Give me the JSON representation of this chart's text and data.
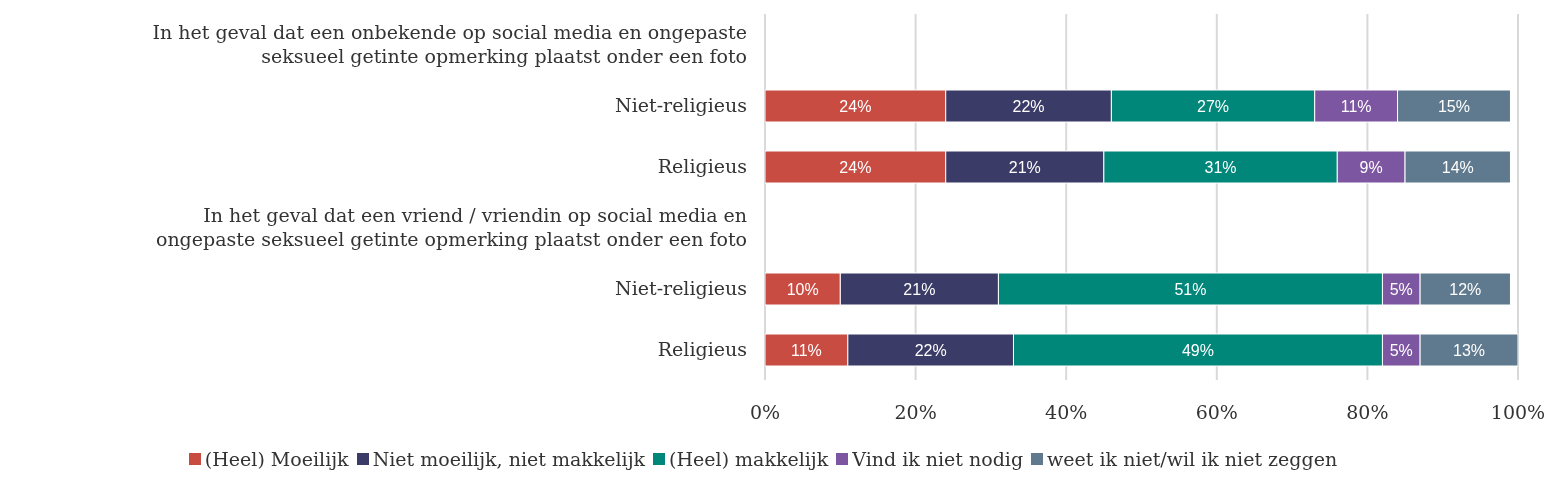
{
  "chart_data": {
    "type": "bar",
    "orientation": "horizontal",
    "stacked": true,
    "categories": [
      "In het geval dat een onbekende op social media en ongepaste seksueel getinte opmerking plaatst onder een foto",
      "Niet-religieus",
      "Religieus",
      "In het geval dat een vriend / vriendin op social media en ongepaste seksueel getinte opmerking plaatst onder een foto",
      "Niet-religieus",
      "Religieus"
    ],
    "series": [
      {
        "name": "(Heel) Moeilijk",
        "color": "#c94c43",
        "values": [
          null,
          24,
          24,
          null,
          10,
          11
        ],
        "value_labels": [
          null,
          "24%",
          "24%",
          null,
          "10%",
          "11%"
        ]
      },
      {
        "name": "Niet moeilijk, niet makkelijk",
        "color": "#3b3b67",
        "values": [
          null,
          22,
          21,
          null,
          21,
          22
        ],
        "value_labels": [
          null,
          "22%",
          "21%",
          null,
          "21%",
          "22%"
        ]
      },
      {
        "name": "(Heel) makkelijk",
        "color": "#00877a",
        "values": [
          null,
          27,
          31,
          null,
          51,
          49
        ],
        "value_labels": [
          null,
          "27%",
          "31%",
          null,
          "51%",
          "49%"
        ]
      },
      {
        "name": "Vind ik niet nodig",
        "color": "#7d56a1",
        "values": [
          null,
          11,
          9,
          null,
          5,
          5
        ],
        "value_labels": [
          null,
          "11%",
          "9%",
          null,
          "5%",
          "5%"
        ]
      },
      {
        "name": "weet ik niet/wil ik niet zeggen",
        "color": "#5f7a8e",
        "values": [
          null,
          15,
          14,
          null,
          12,
          13
        ],
        "value_labels": [
          null,
          "15%",
          "14%",
          null,
          "12%",
          "13%"
        ]
      }
    ],
    "xlim": [
      0,
      100
    ],
    "xticks": [
      {
        "value": 0,
        "label": "0%"
      },
      {
        "value": 20,
        "label": "20%"
      },
      {
        "value": 40,
        "label": "40%"
      },
      {
        "value": 60,
        "label": "60%"
      },
      {
        "value": 80,
        "label": "80%"
      },
      {
        "value": 100,
        "label": "100%"
      }
    ],
    "grid": "x",
    "legend": "bottom"
  }
}
